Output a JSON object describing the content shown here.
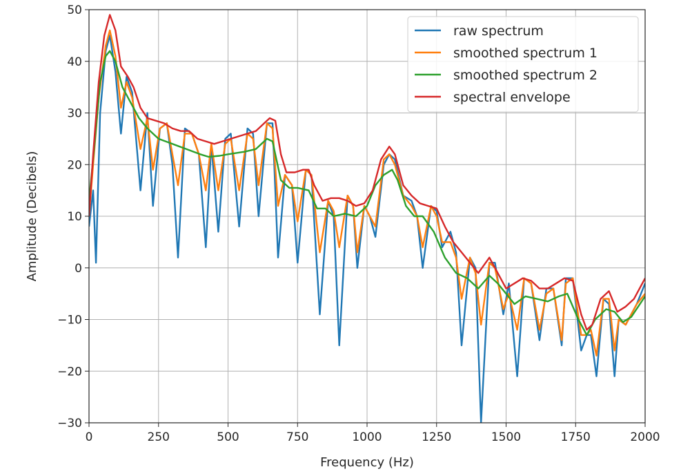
{
  "chart_data": {
    "type": "line",
    "title": "",
    "xlabel": "Frequency (Hz)",
    "ylabel": "Amplitude (Decibels)",
    "xlim": [
      0,
      2000
    ],
    "ylim": [
      -30,
      50
    ],
    "xticks": [
      0,
      250,
      500,
      750,
      1000,
      1250,
      1500,
      1750,
      2000
    ],
    "yticks": [
      -30,
      -20,
      -10,
      0,
      10,
      20,
      30,
      40,
      50
    ],
    "grid": true,
    "legend_position": "top-right",
    "series": [
      {
        "name": "raw spectrum",
        "color": "#1f77b4",
        "x": [
          0,
          15,
          25,
          40,
          60,
          75,
          95,
          115,
          135,
          155,
          185,
          210,
          230,
          255,
          280,
          300,
          320,
          345,
          370,
          395,
          420,
          440,
          465,
          490,
          510,
          540,
          570,
          590,
          610,
          640,
          660,
          680,
          705,
          730,
          750,
          780,
          800,
          830,
          860,
          880,
          900,
          930,
          950,
          965,
          990,
          1010,
          1030,
          1060,
          1080,
          1100,
          1130,
          1160,
          1180,
          1200,
          1230,
          1250,
          1270,
          1300,
          1320,
          1340,
          1370,
          1390,
          1410,
          1440,
          1460,
          1490,
          1510,
          1540,
          1565,
          1590,
          1620,
          1645,
          1670,
          1700,
          1715,
          1740,
          1770,
          1790,
          1805,
          1825,
          1850,
          1870,
          1890,
          1905,
          1930,
          1950,
          1970,
          2000
        ],
        "y": [
          8,
          15,
          1,
          30,
          42,
          45,
          38,
          26,
          37,
          34,
          15,
          30,
          12,
          27,
          28,
          20,
          2,
          27,
          26,
          22,
          4,
          24,
          7,
          25,
          26,
          8,
          27,
          26,
          10,
          28,
          28,
          2,
          18,
          16,
          1,
          19,
          18,
          -9,
          13,
          10,
          -15,
          14,
          12,
          0,
          12,
          10,
          6,
          20,
          22,
          21,
          14,
          13,
          10,
          0,
          12,
          11,
          4,
          7,
          3,
          -15,
          2,
          0,
          -30,
          1,
          1,
          -9,
          -3,
          -21,
          -2,
          -3,
          -14,
          -4,
          -4,
          -15,
          -2,
          -2,
          -16,
          -13,
          -13,
          -21,
          -6,
          -7,
          -21,
          -10,
          -11,
          -9,
          -7,
          -3
        ]
      },
      {
        "name": "smoothed spectrum 1",
        "color": "#ff7f0e",
        "x": [
          0,
          15,
          35,
          60,
          75,
          95,
          115,
          135,
          155,
          185,
          210,
          230,
          255,
          280,
          300,
          320,
          345,
          370,
          395,
          420,
          440,
          465,
          490,
          510,
          540,
          570,
          590,
          610,
          640,
          660,
          680,
          705,
          730,
          750,
          780,
          800,
          830,
          860,
          880,
          900,
          930,
          950,
          965,
          990,
          1010,
          1030,
          1060,
          1080,
          1100,
          1130,
          1160,
          1180,
          1200,
          1230,
          1250,
          1270,
          1300,
          1320,
          1340,
          1370,
          1390,
          1410,
          1440,
          1460,
          1490,
          1510,
          1540,
          1565,
          1590,
          1620,
          1645,
          1670,
          1700,
          1715,
          1740,
          1770,
          1790,
          1805,
          1825,
          1850,
          1870,
          1890,
          1905,
          1930,
          1950,
          1970,
          2000
        ],
        "y": [
          10,
          20,
          33,
          43,
          46,
          41,
          31,
          36,
          33,
          23,
          29,
          19,
          27,
          28,
          22,
          16,
          26,
          26,
          22,
          15,
          24,
          15,
          24,
          25,
          15,
          26,
          25,
          16,
          28,
          27,
          12,
          18,
          16,
          9,
          19,
          18,
          3,
          13,
          11,
          4,
          14,
          12,
          3,
          12,
          10,
          8,
          21,
          22,
          20,
          14,
          12,
          10,
          4,
          12,
          10,
          5,
          5,
          2,
          -6,
          2,
          -1,
          -11,
          1,
          0,
          -8,
          -5,
          -12,
          -2,
          -3,
          -12,
          -5,
          -4,
          -14,
          -3,
          -2,
          -13,
          -13,
          -12,
          -17,
          -6,
          -6,
          -16,
          -10,
          -11,
          -9,
          -7,
          -5
        ]
      },
      {
        "name": "smoothed spectrum 2",
        "color": "#2ca02c",
        "x": [
          0,
          20,
          40,
          60,
          75,
          95,
          120,
          150,
          180,
          210,
          250,
          300,
          350,
          400,
          430,
          470,
          500,
          560,
          600,
          640,
          660,
          690,
          720,
          750,
          790,
          820,
          850,
          880,
          920,
          960,
          1000,
          1030,
          1060,
          1090,
          1110,
          1140,
          1170,
          1200,
          1240,
          1280,
          1320,
          1360,
          1400,
          1440,
          1470,
          1500,
          1530,
          1570,
          1610,
          1650,
          1690,
          1720,
          1760,
          1790,
          1820,
          1860,
          1890,
          1920,
          1950,
          2000
        ],
        "y": [
          13,
          24,
          36,
          41,
          42,
          40,
          35,
          32,
          29,
          27,
          25,
          24,
          23,
          22,
          21.5,
          21.7,
          22,
          22.5,
          23,
          25,
          24.5,
          17,
          15.5,
          15.5,
          15,
          11.5,
          11.5,
          10,
          10.5,
          10,
          12,
          16,
          18,
          19,
          17,
          12,
          10,
          10,
          7,
          2,
          -1,
          -2,
          -4,
          -1.5,
          -3,
          -5,
          -7,
          -5.5,
          -6,
          -6.5,
          -5.5,
          -5,
          -10,
          -13,
          -10,
          -8,
          -8.5,
          -10.5,
          -9.5,
          -5.5
        ]
      },
      {
        "name": "spectral envelope",
        "color": "#d62728",
        "x": [
          0,
          15,
          35,
          55,
          75,
          95,
          115,
          140,
          160,
          185,
          210,
          240,
          270,
          300,
          330,
          360,
          390,
          420,
          450,
          480,
          510,
          540,
          570,
          600,
          630,
          650,
          670,
          690,
          710,
          740,
          770,
          790,
          810,
          840,
          870,
          900,
          930,
          960,
          990,
          1020,
          1050,
          1080,
          1100,
          1130,
          1160,
          1190,
          1220,
          1250,
          1280,
          1310,
          1340,
          1370,
          1400,
          1440,
          1470,
          1500,
          1530,
          1560,
          1590,
          1620,
          1650,
          1680,
          1710,
          1740,
          1770,
          1790,
          1810,
          1840,
          1870,
          1900,
          1930,
          1960,
          2000
        ],
        "y": [
          10,
          22,
          36,
          45,
          49,
          46,
          39,
          37,
          35,
          31,
          29,
          28.5,
          28,
          27,
          26.5,
          26.5,
          25,
          24.5,
          24,
          24.5,
          25,
          25.5,
          26,
          26.5,
          28,
          29,
          28.5,
          22,
          18.5,
          18.5,
          19,
          19,
          16,
          13,
          13.5,
          13.5,
          13,
          12,
          12.5,
          15,
          21,
          23.5,
          22,
          16,
          14,
          12.5,
          12,
          11.5,
          8,
          5,
          3,
          1,
          -1,
          2,
          -1,
          -4,
          -3,
          -2,
          -2.5,
          -4,
          -4,
          -3,
          -2,
          -2.5,
          -9,
          -12,
          -11,
          -6,
          -4.5,
          -8.5,
          -7.5,
          -6,
          -2
        ]
      }
    ]
  }
}
